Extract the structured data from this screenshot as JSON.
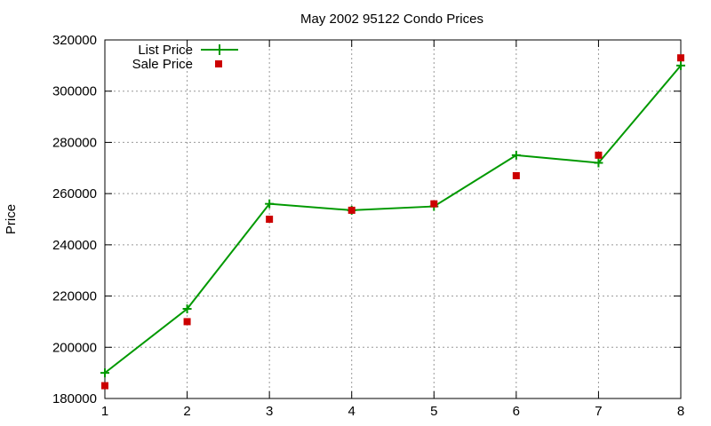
{
  "chart_data": {
    "type": "line",
    "title": "May 2002 95122 Condo Prices",
    "xlabel": "",
    "ylabel": "Price",
    "xlim": [
      1,
      8
    ],
    "ylim": [
      180000,
      320000
    ],
    "x_ticks": [
      1,
      2,
      3,
      4,
      5,
      6,
      7,
      8
    ],
    "y_ticks": [
      180000,
      200000,
      220000,
      240000,
      260000,
      280000,
      300000,
      320000
    ],
    "grid": true,
    "legend_position": "top-left",
    "x": [
      1,
      2,
      3,
      4,
      5,
      6,
      7,
      8
    ],
    "series": [
      {
        "name": "List Price",
        "style": "line-with-plus-markers",
        "color": "#009900",
        "values": [
          190000,
          215000,
          256000,
          253500,
          255000,
          275000,
          272000,
          310000
        ]
      },
      {
        "name": "Sale Price",
        "style": "square-markers",
        "color": "#cc0000",
        "values": [
          185000,
          210000,
          250000,
          253500,
          256000,
          267000,
          275000,
          313000
        ]
      }
    ]
  }
}
